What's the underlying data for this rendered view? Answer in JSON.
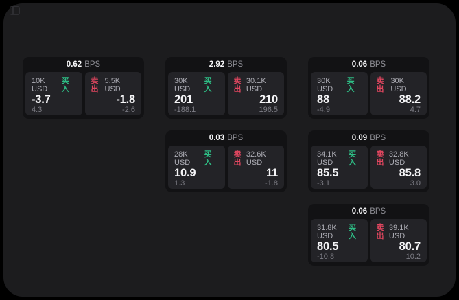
{
  "colors": {
    "background": "#000000",
    "surface": "#1C1C1E",
    "card": "#121214",
    "panel": "#232327",
    "buy": "#2EBD85",
    "sell": "#E0465F",
    "text_primary": "#F5F5F7",
    "text_secondary": "#ACACB4",
    "text_muted": "#7E7E86"
  },
  "cards": [
    {
      "bps_value": "0.62",
      "bps_unit": "BPS",
      "buy": {
        "size": "10K USD",
        "side": "买入",
        "price": "-3.7",
        "delta": "4.3"
      },
      "sell": {
        "side": "卖出",
        "size": "5.5K USD",
        "price": "-1.8",
        "delta": "-2.6"
      }
    },
    {
      "bps_value": "2.92",
      "bps_unit": "BPS",
      "buy": {
        "size": "30K USD",
        "side": "买入",
        "price": "201",
        "delta": "-188.1"
      },
      "sell": {
        "side": "卖出",
        "size": "30.1K USD",
        "price": "210",
        "delta": "196.5"
      }
    },
    {
      "bps_value": "0.06",
      "bps_unit": "BPS",
      "buy": {
        "size": "30K USD",
        "side": "买入",
        "price": "88",
        "delta": "-4.9"
      },
      "sell": {
        "side": "卖出",
        "size": "30K USD",
        "price": "88.2",
        "delta": "4.7"
      }
    },
    {
      "bps_value": "0.03",
      "bps_unit": "BPS",
      "buy": {
        "size": "28K USD",
        "side": "买入",
        "price": "10.9",
        "delta": "1.3"
      },
      "sell": {
        "side": "卖出",
        "size": "32.6K USD",
        "price": "11",
        "delta": "-1.8"
      }
    },
    {
      "bps_value": "0.09",
      "bps_unit": "BPS",
      "buy": {
        "size": "34.1K USD",
        "side": "买入",
        "price": "85.5",
        "delta": "-3.1"
      },
      "sell": {
        "side": "卖出",
        "size": "32.8K USD",
        "price": "85.8",
        "delta": "3.0"
      }
    },
    {
      "bps_value": "0.06",
      "bps_unit": "BPS",
      "buy": {
        "size": "31.8K USD",
        "side": "买入",
        "price": "80.5",
        "delta": "-10.8"
      },
      "sell": {
        "side": "卖出",
        "size": "39.1K USD",
        "price": "80.7",
        "delta": "10.2"
      }
    }
  ]
}
